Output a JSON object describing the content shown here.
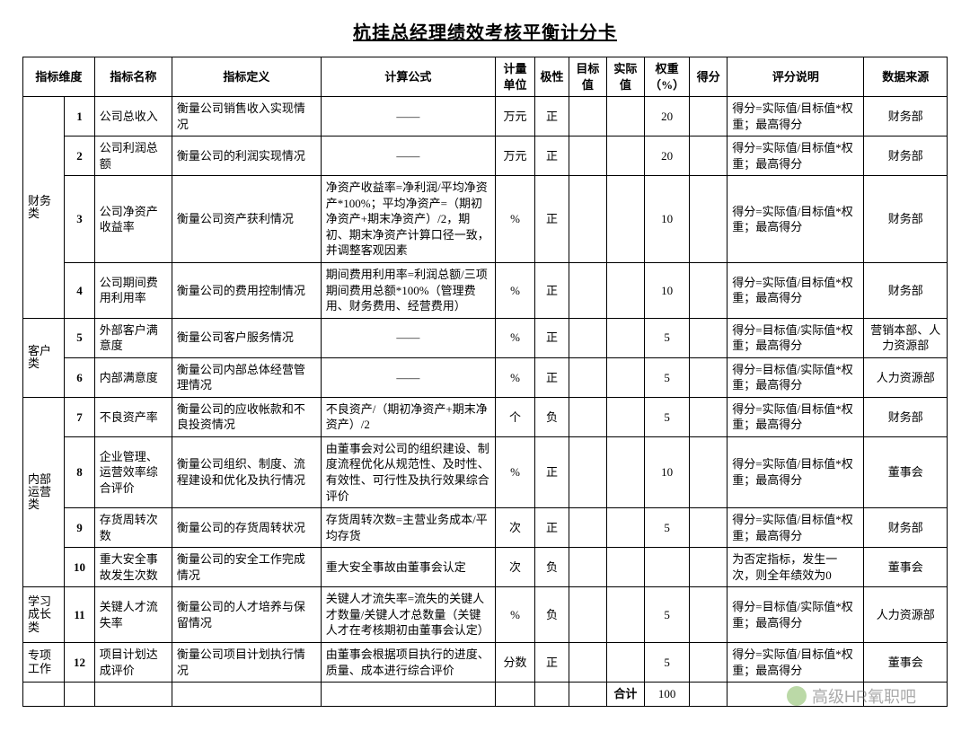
{
  "title": "杭挂总经理绩效考核平衡计分卡",
  "columns": {
    "dim": "指标维度",
    "name": "指标名称",
    "def": "指标定义",
    "formula": "计算公式",
    "unit": "计量单位",
    "polarity": "极性",
    "target": "目标值",
    "actual": "实际值",
    "weight": "权重（%）",
    "score": "得分",
    "desc": "评分说明",
    "source": "数据来源"
  },
  "dims": {
    "fin": "财务类",
    "cust": "客户类",
    "int": "内部运营类",
    "learn": "学习成长类",
    "spec": "专项工作"
  },
  "rows": {
    "r1": {
      "idx": "1",
      "name": "公司总收入",
      "def": "衡量公司销售收入实现情况",
      "formula": "——",
      "unit": "万元",
      "pol": "正",
      "wt": "20",
      "desc": "得分=实际值/目标值*权重；最高得分",
      "src": "财务部"
    },
    "r2": {
      "idx": "2",
      "name": "公司利润总额",
      "def": "衡量公司的利润实现情况",
      "formula": "——",
      "unit": "万元",
      "pol": "正",
      "wt": "20",
      "desc": "得分=实际值/目标值*权重；最高得分",
      "src": "财务部"
    },
    "r3": {
      "idx": "3",
      "name": "公司净资产收益率",
      "def": "衡量公司资产获利情况",
      "formula": "净资产收益率=净利润/平均净资产*100%；平均净资产=（期初净资产+期末净资产）/2，期初、期末净资产计算口径一致，并调整客观因素",
      "unit": "%",
      "pol": "正",
      "wt": "10",
      "desc": "得分=实际值/目标值*权重；最高得分",
      "src": "财务部"
    },
    "r4": {
      "idx": "4",
      "name": "公司期间费用利用率",
      "def": "衡量公司的费用控制情况",
      "formula": "期间费用利用率=利润总额/三项期间费用总额*100%（管理费用、财务费用、经营费用）",
      "unit": "%",
      "pol": "正",
      "wt": "10",
      "desc": "得分=实际值/目标值*权重；最高得分",
      "src": "财务部"
    },
    "r5": {
      "idx": "5",
      "name": "外部客户满意度",
      "def": "衡量公司客户服务情况",
      "formula": "——",
      "unit": "%",
      "pol": "正",
      "wt": "5",
      "desc": "得分=目标值/实际值*权重；最高得分",
      "src": "营销本部、人力资源部"
    },
    "r6": {
      "idx": "6",
      "name": "内部满意度",
      "def": "衡量公司内部总体经营管理情况",
      "formula": "——",
      "unit": "%",
      "pol": "正",
      "wt": "5",
      "desc": "得分=目标值/实际值*权重；最高得分",
      "src": "人力资源部"
    },
    "r7": {
      "idx": "7",
      "name": "不良资产率",
      "def": "衡量公司的应收帐款和不良投资情况",
      "formula": "不良资产/（期初净资产+期末净资产）/2",
      "unit": "个",
      "pol": "负",
      "wt": "5",
      "desc": "得分=实际值/目标值*权重；最高得分",
      "src": "财务部"
    },
    "r8": {
      "idx": "8",
      "name": "企业管理、运营效率综合评价",
      "def": "衡量公司组织、制度、流程建设和优化及执行情况",
      "formula": "由董事会对公司的组织建设、制度流程优化从规范性、及时性、有效性、可行性及执行效果综合评价",
      "unit": "%",
      "pol": "正",
      "wt": "10",
      "desc": "得分=实际值/目标值*权重；最高得分",
      "src": "董事会"
    },
    "r9": {
      "idx": "9",
      "name": "存货周转次数",
      "def": "衡量公司的存货周转状况",
      "formula": "存货周转次数=主营业务成本/平均存货",
      "unit": "次",
      "pol": "正",
      "wt": "5",
      "desc": "得分=实际值/目标值*权重；最高得分",
      "src": "财务部"
    },
    "r10": {
      "idx": "10",
      "name": "重大安全事故发生次数",
      "def": "衡量公司的安全工作完成情况",
      "formula": "重大安全事故由董事会认定",
      "unit": "次",
      "pol": "负",
      "wt": "",
      "desc": "为否定指标，发生一次，则全年绩效为0",
      "src": "董事会"
    },
    "r11": {
      "idx": "11",
      "name": "关键人才流失率",
      "def": "衡量公司的人才培养与保留情况",
      "formula": "关键人才流失率=流失的关键人才数量/关键人才总数量（关键人才在考核期初由董事会认定）",
      "unit": "%",
      "pol": "负",
      "wt": "5",
      "desc": "得分=目标值/实际值*权重；最高得分",
      "src": "人力资源部"
    },
    "r12": {
      "idx": "12",
      "name": "项目计划达成评价",
      "def": "衡量公司项目计划执行情况",
      "formula": "由董事会根据项目执行的进度、质量、成本进行综合评价",
      "unit": "分数",
      "pol": "正",
      "wt": "5",
      "desc": "得分=实际值/目标值*权重；最高得分",
      "src": "董事会"
    }
  },
  "footer": {
    "label": "合计",
    "total": "100"
  },
  "watermark": "高级HR氧职吧",
  "colors": {
    "border": "#000000",
    "bg": "#ffffff",
    "text": "#000000"
  }
}
